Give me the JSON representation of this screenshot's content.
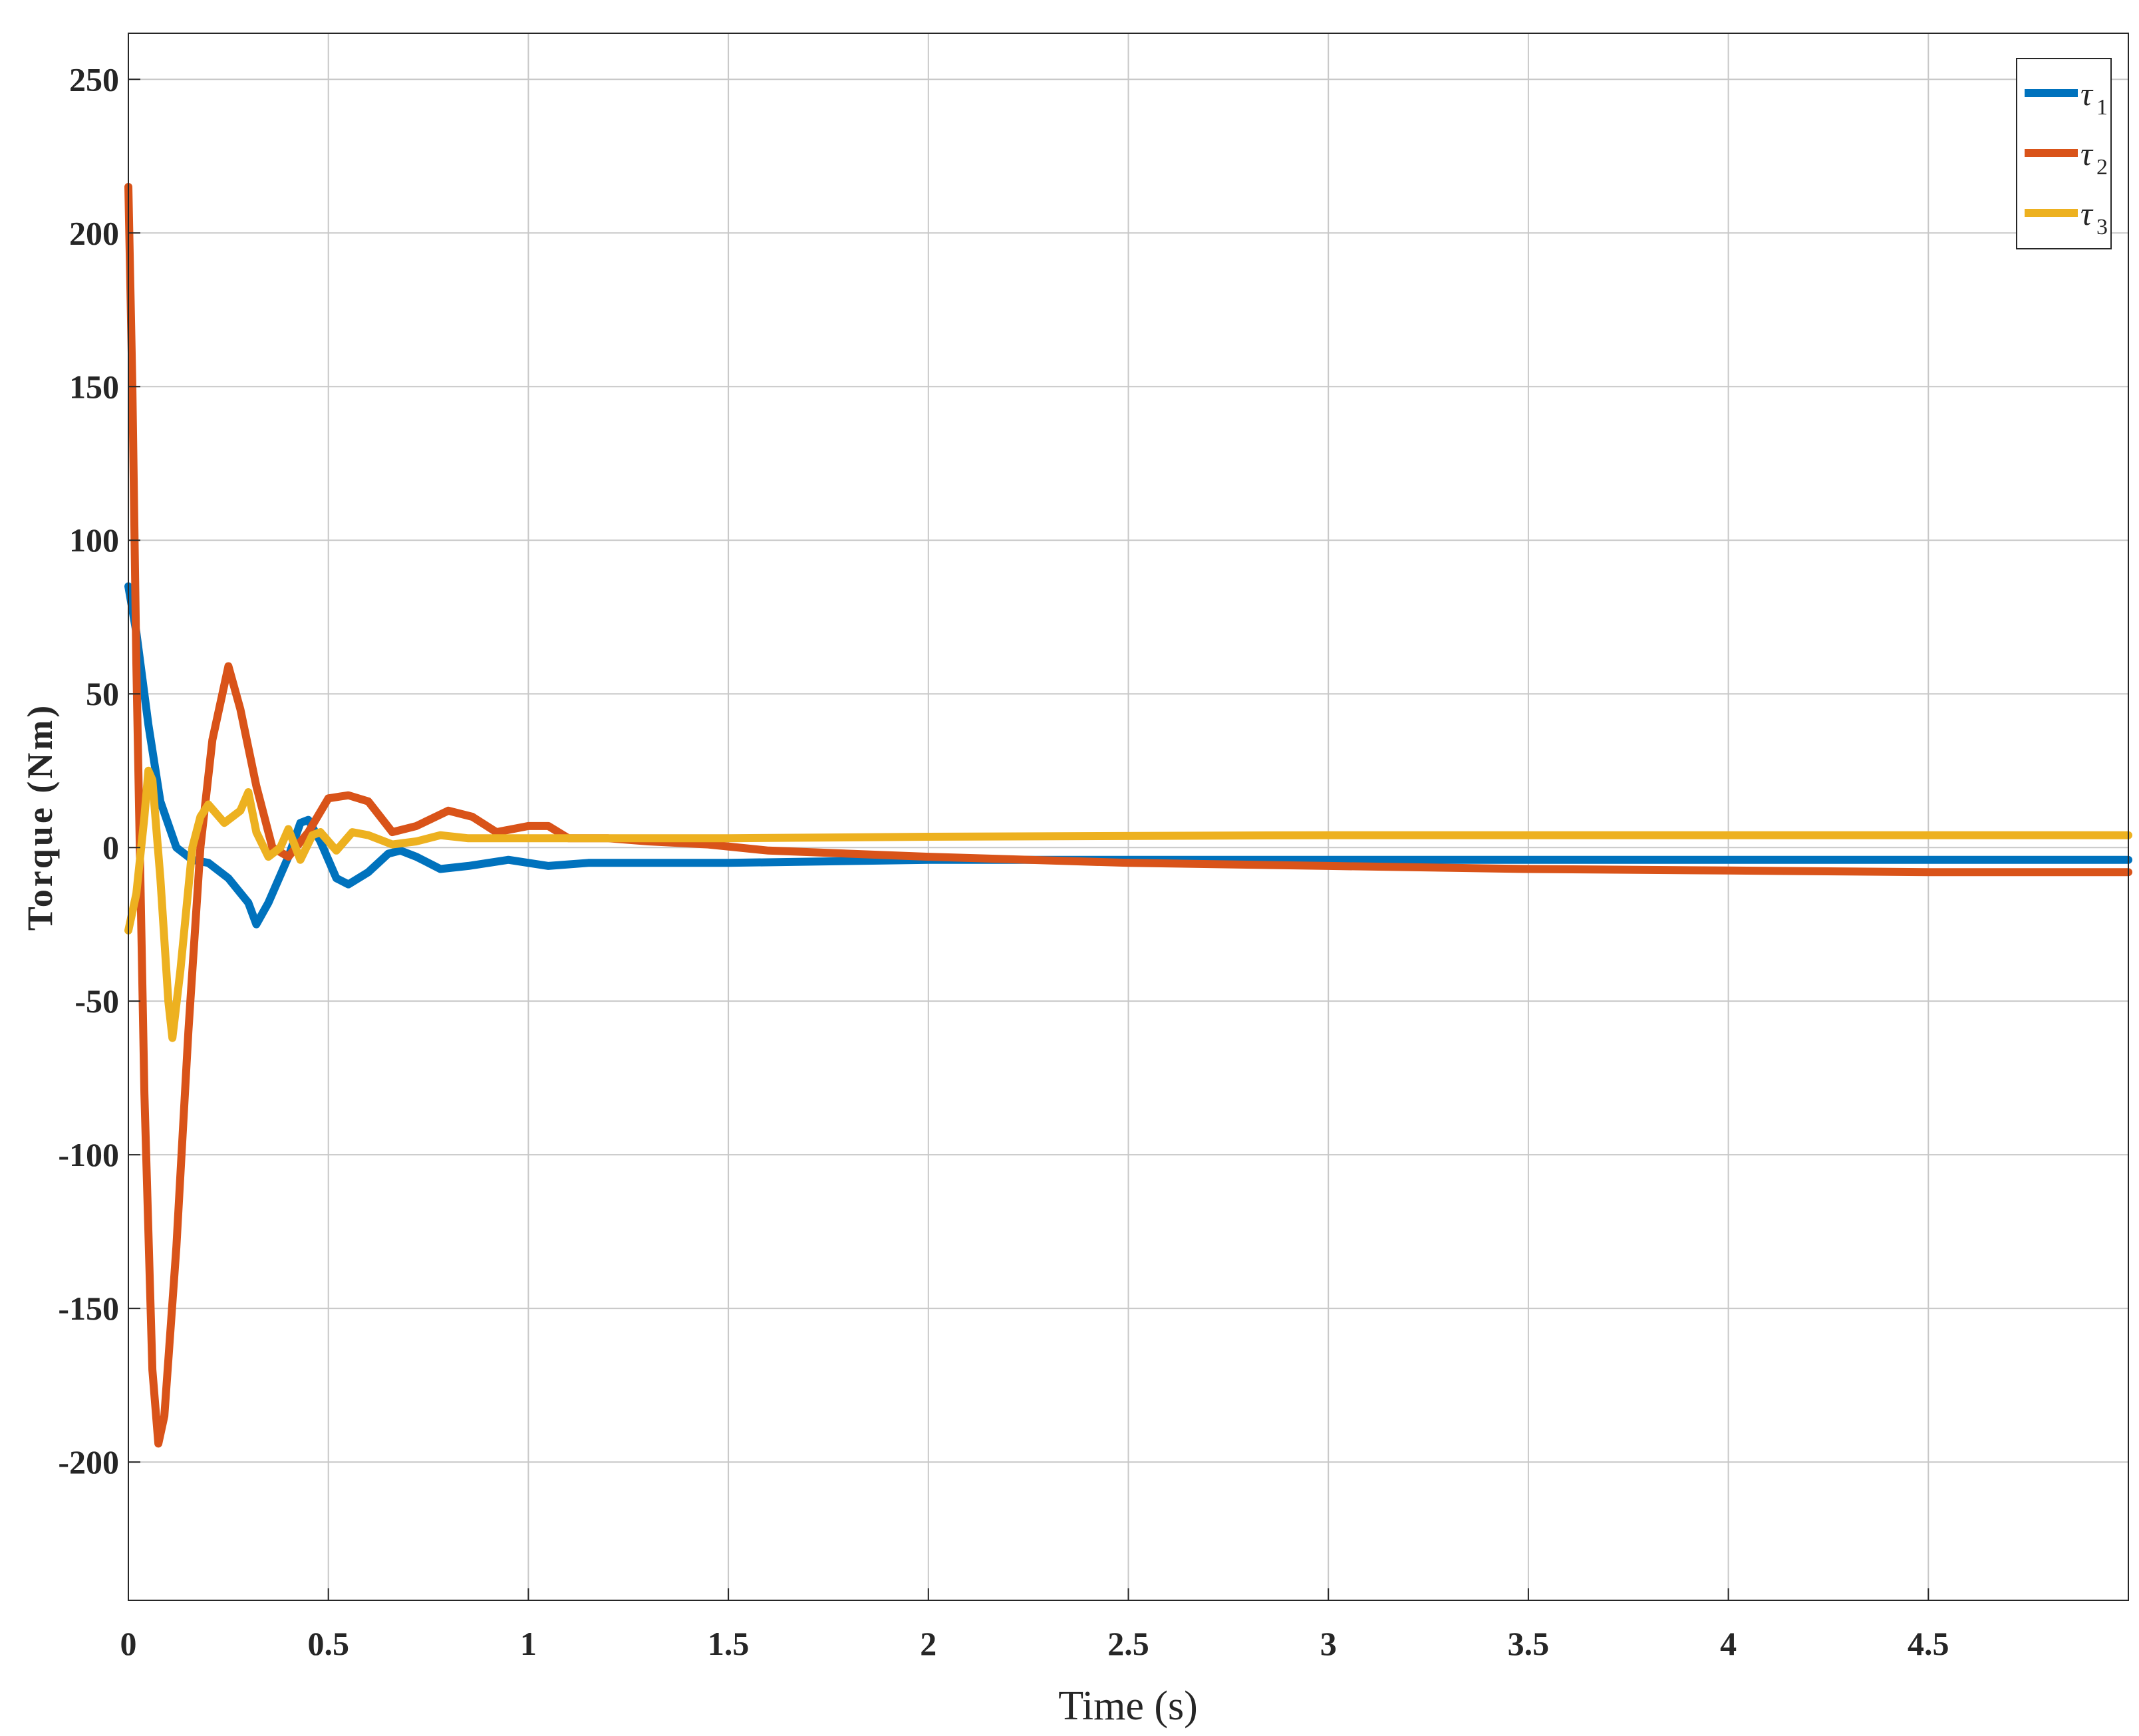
{
  "chart_data": {
    "type": "line",
    "xlabel": "Time (s)",
    "ylabel": "Torque (Nm)",
    "xlim": [
      0,
      5
    ],
    "ylim": [
      -245,
      265
    ],
    "xticks": [
      0,
      0.5,
      1,
      1.5,
      2,
      2.5,
      3,
      3.5,
      4,
      4.5
    ],
    "xtick_labels": [
      "0",
      "0.5",
      "1",
      "1.5",
      "2",
      "2.5",
      "3",
      "3.5",
      "4",
      "4.5"
    ],
    "yticks": [
      250,
      200,
      150,
      100,
      50,
      0,
      -50,
      -100,
      -150,
      -200
    ],
    "ytick_labels": [
      "250",
      "200",
      "150",
      "100",
      "50",
      "0",
      "-50",
      "-100",
      "-150",
      "-200"
    ],
    "grid": true,
    "legend_position": "top-right",
    "series": [
      {
        "name": "τ",
        "subscript": "1",
        "color": "#0072BD",
        "points": [
          [
            0,
            85
          ],
          [
            0.02,
            70
          ],
          [
            0.05,
            40
          ],
          [
            0.08,
            15
          ],
          [
            0.12,
            0
          ],
          [
            0.16,
            -4
          ],
          [
            0.2,
            -5
          ],
          [
            0.25,
            -10
          ],
          [
            0.3,
            -18
          ],
          [
            0.32,
            -25
          ],
          [
            0.35,
            -18
          ],
          [
            0.4,
            -3
          ],
          [
            0.43,
            8
          ],
          [
            0.45,
            9
          ],
          [
            0.48,
            2
          ],
          [
            0.52,
            -10
          ],
          [
            0.55,
            -12
          ],
          [
            0.6,
            -8
          ],
          [
            0.65,
            -2
          ],
          [
            0.68,
            -1
          ],
          [
            0.72,
            -3
          ],
          [
            0.78,
            -7
          ],
          [
            0.85,
            -6
          ],
          [
            0.95,
            -4
          ],
          [
            1.05,
            -6
          ],
          [
            1.15,
            -5
          ],
          [
            1.25,
            -5
          ],
          [
            1.5,
            -5
          ],
          [
            2,
            -4
          ],
          [
            2.5,
            -4
          ],
          [
            3,
            -4
          ],
          [
            3.5,
            -4
          ],
          [
            4,
            -4
          ],
          [
            4.5,
            -4
          ],
          [
            5,
            -4
          ]
        ]
      },
      {
        "name": "τ",
        "subscript": "2",
        "color": "#D95319",
        "points": [
          [
            0,
            215
          ],
          [
            0.01,
            150
          ],
          [
            0.02,
            60
          ],
          [
            0.04,
            -80
          ],
          [
            0.06,
            -170
          ],
          [
            0.075,
            -194
          ],
          [
            0.09,
            -185
          ],
          [
            0.12,
            -130
          ],
          [
            0.15,
            -60
          ],
          [
            0.18,
            0
          ],
          [
            0.21,
            35
          ],
          [
            0.25,
            59
          ],
          [
            0.28,
            45
          ],
          [
            0.32,
            20
          ],
          [
            0.36,
            0
          ],
          [
            0.4,
            -3
          ],
          [
            0.45,
            5
          ],
          [
            0.5,
            16
          ],
          [
            0.55,
            17
          ],
          [
            0.6,
            15
          ],
          [
            0.66,
            5
          ],
          [
            0.72,
            7
          ],
          [
            0.8,
            12
          ],
          [
            0.86,
            10
          ],
          [
            0.92,
            5
          ],
          [
            1,
            7
          ],
          [
            1.05,
            7
          ],
          [
            1.1,
            3
          ],
          [
            1.2,
            3
          ],
          [
            1.3,
            2
          ],
          [
            1.45,
            1
          ],
          [
            1.6,
            -1
          ],
          [
            2,
            -3
          ],
          [
            2.5,
            -5
          ],
          [
            3,
            -6
          ],
          [
            3.5,
            -7
          ],
          [
            4,
            -7.5
          ],
          [
            4.5,
            -8
          ],
          [
            5,
            -8
          ]
        ]
      },
      {
        "name": "τ",
        "subscript": "3",
        "color": "#EDB120",
        "points": [
          [
            0,
            -27
          ],
          [
            0.02,
            -15
          ],
          [
            0.04,
            10
          ],
          [
            0.05,
            25
          ],
          [
            0.06,
            22
          ],
          [
            0.08,
            -10
          ],
          [
            0.1,
            -50
          ],
          [
            0.11,
            -62
          ],
          [
            0.13,
            -40
          ],
          [
            0.16,
            0
          ],
          [
            0.18,
            10
          ],
          [
            0.2,
            14
          ],
          [
            0.24,
            8
          ],
          [
            0.28,
            12
          ],
          [
            0.3,
            18
          ],
          [
            0.32,
            5
          ],
          [
            0.35,
            -3
          ],
          [
            0.38,
            0
          ],
          [
            0.4,
            6
          ],
          [
            0.43,
            -4
          ],
          [
            0.46,
            4
          ],
          [
            0.48,
            5
          ],
          [
            0.52,
            -1
          ],
          [
            0.56,
            5
          ],
          [
            0.6,
            4
          ],
          [
            0.66,
            1
          ],
          [
            0.72,
            2
          ],
          [
            0.78,
            4
          ],
          [
            0.85,
            3
          ],
          [
            0.95,
            3
          ],
          [
            1.1,
            3
          ],
          [
            1.5,
            3
          ],
          [
            2,
            3.5
          ],
          [
            3,
            4
          ],
          [
            4,
            4
          ],
          [
            5,
            4
          ]
        ]
      }
    ]
  }
}
